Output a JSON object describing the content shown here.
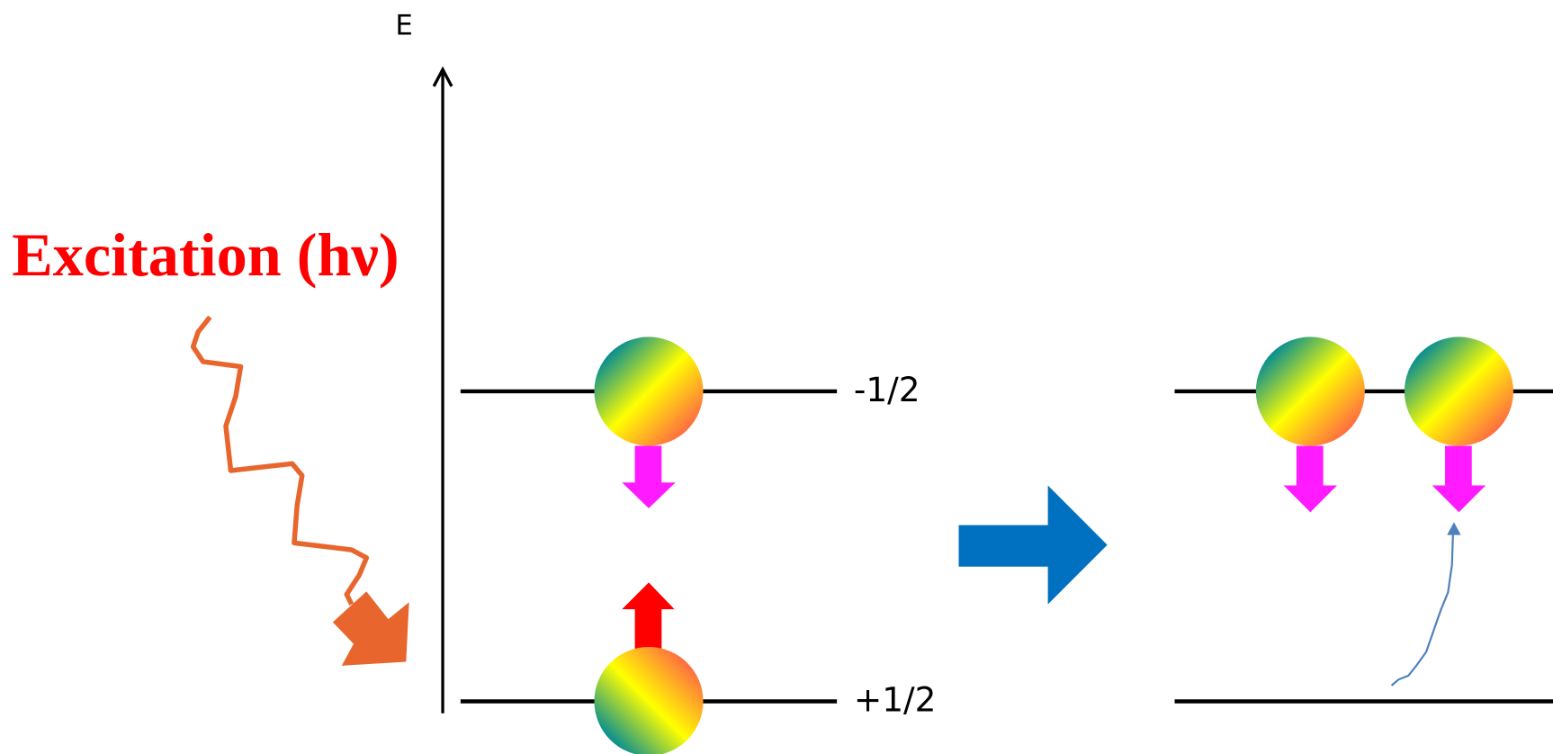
{
  "axis_label": "E",
  "excitation_label": "Excitation (hν)",
  "levels": [
    "-1/2",
    "+1/2"
  ]
}
